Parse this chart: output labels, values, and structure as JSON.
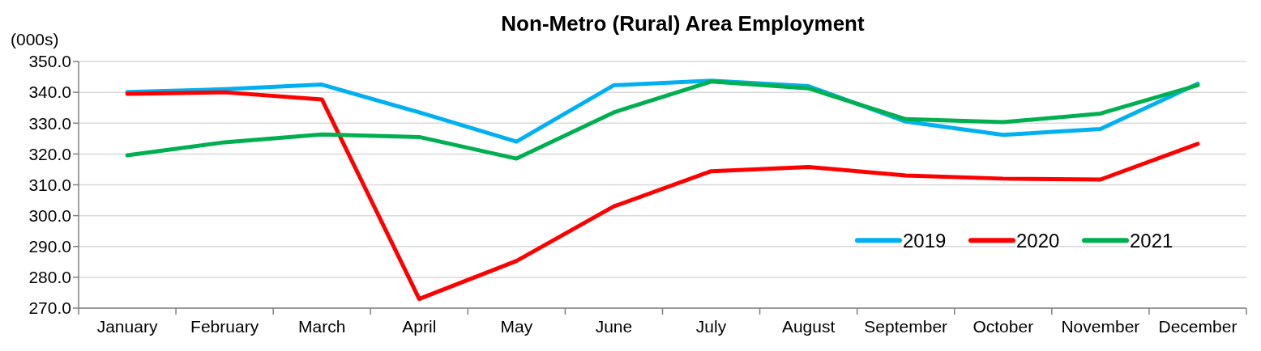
{
  "chart_data": {
    "type": "line",
    "title": "Non-Metro (Rural) Area Employment",
    "ylabel": "(000s)",
    "categories": [
      "January",
      "February",
      "March",
      "April",
      "May",
      "June",
      "July",
      "August",
      "September",
      "October",
      "November",
      "December"
    ],
    "series": [
      {
        "name": "2019",
        "color": "#00b0f0",
        "values": [
          340.1,
          341,
          342.5,
          333.5,
          324,
          342.3,
          343.8,
          342,
          330.5,
          326.2,
          328.1,
          342.8
        ]
      },
      {
        "name": "2020",
        "color": "#ff0000",
        "values": [
          339.5,
          340,
          337.7,
          273,
          285.3,
          303,
          314.4,
          315.8,
          313,
          312,
          311.7,
          323.3
        ]
      },
      {
        "name": "2021",
        "color": "#00b050",
        "values": [
          319.6,
          323.8,
          326.3,
          325.5,
          318.5,
          333.5,
          343.5,
          341.3,
          331.3,
          330.3,
          333.1,
          342.3
        ]
      }
    ],
    "ylim": [
      270,
      350
    ],
    "yticks": [
      {
        "value": 270,
        "label": "270.0"
      },
      {
        "value": 280,
        "label": "280.0"
      },
      {
        "value": 290,
        "label": "290.0"
      },
      {
        "value": 300,
        "label": "300.0"
      },
      {
        "value": 310,
        "label": "310.0"
      },
      {
        "value": 320,
        "label": "320.0"
      },
      {
        "value": 330,
        "label": "330.0"
      },
      {
        "value": 340,
        "label": "340.0"
      },
      {
        "value": 350,
        "label": "350.0"
      }
    ],
    "grid": "y",
    "legend": "bottom right",
    "marker": "none",
    "line_style": "solid"
  }
}
